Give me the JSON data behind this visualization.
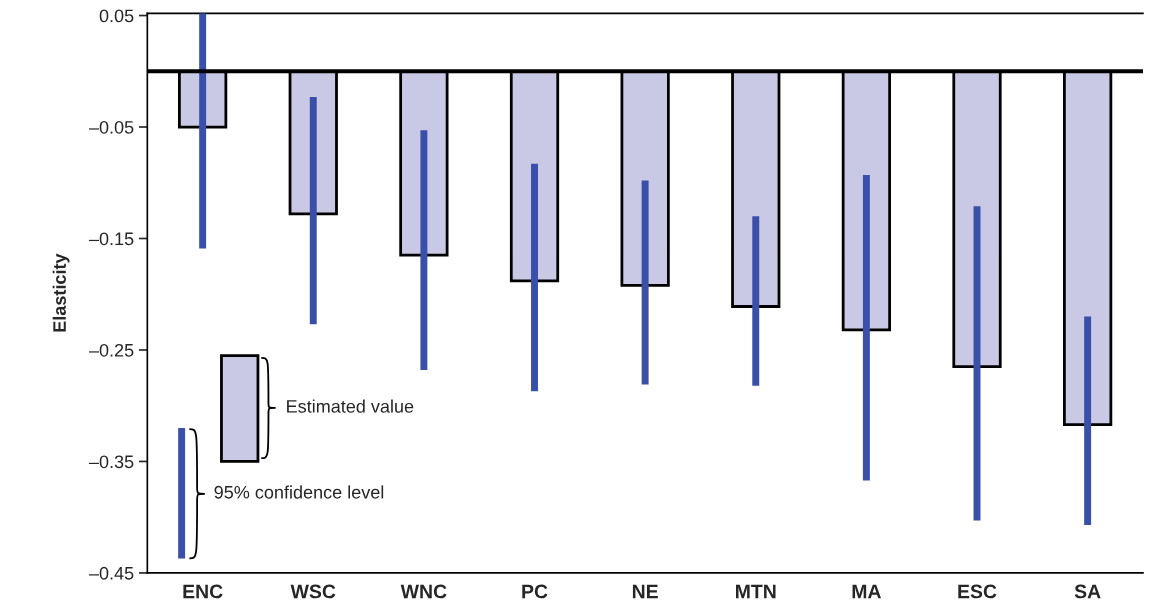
{
  "chart_data": {
    "type": "bar",
    "ylabel": "Elasticity",
    "categories": [
      "ENC",
      "WSC",
      "WNC",
      "PC",
      "NE",
      "MTN",
      "MA",
      "ESC",
      "SA"
    ],
    "series": [
      {
        "color": "#c9c9e5",
        "values": [
          -0.05,
          -0.128,
          -0.165,
          -0.188,
          -0.192,
          -0.211,
          -0.232,
          -0.265,
          -0.317
        ],
        "errors": [
          [
            -0.159,
            0.052
          ],
          [
            -0.227,
            -0.023
          ],
          [
            -0.268,
            -0.053
          ],
          [
            -0.287,
            -0.083
          ],
          [
            -0.281,
            -0.098
          ],
          [
            -0.282,
            -0.13
          ],
          [
            -0.367,
            -0.093
          ],
          [
            -0.403,
            -0.121
          ],
          [
            -0.407,
            -0.22
          ]
        ]
      }
    ],
    "ylim": [
      -0.45,
      0.052
    ],
    "yticks": [
      {
        "value": 0.05,
        "label": "0.05"
      },
      {
        "value": -0.05,
        "label": "–0.05"
      },
      {
        "value": -0.15,
        "label": "–0.15"
      },
      {
        "value": -0.25,
        "label": "–0.25"
      },
      {
        "value": -0.35,
        "label": "–0.35"
      },
      {
        "value": -0.45,
        "label": "–0.45"
      }
    ],
    "ref_lines": [
      {
        "axis": "y",
        "value": 0,
        "color": "#000000"
      }
    ],
    "annotations": [
      "Estimated value",
      "95% confidence level"
    ],
    "grid": false,
    "legend": false
  }
}
